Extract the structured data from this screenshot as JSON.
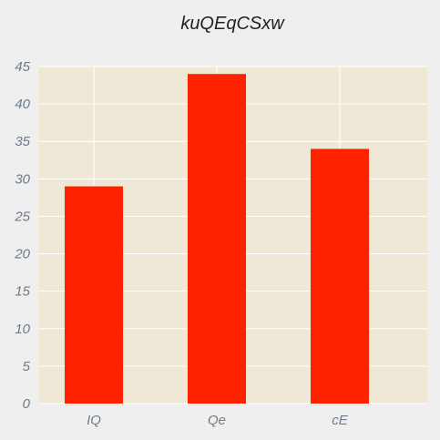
{
  "chart_data": {
    "type": "bar",
    "title": "kuQEqCSxw",
    "xlabel": "",
    "ylabel": "",
    "categories": [
      "IQ",
      "Qe",
      "cE"
    ],
    "values": [
      29,
      44,
      34
    ],
    "ylim": [
      0,
      45
    ],
    "yticks": [
      "0",
      "5",
      "10",
      "15",
      "20",
      "25",
      "30",
      "35",
      "40",
      "45"
    ],
    "grid": true,
    "legend": "none",
    "colors": {
      "bar": "#ff2200",
      "plot_background": "#efe8d6",
      "figure_background": "#efefef",
      "grid": "#ffffff",
      "tick_text": "#6d7b8a",
      "title_text": "#222222"
    }
  }
}
